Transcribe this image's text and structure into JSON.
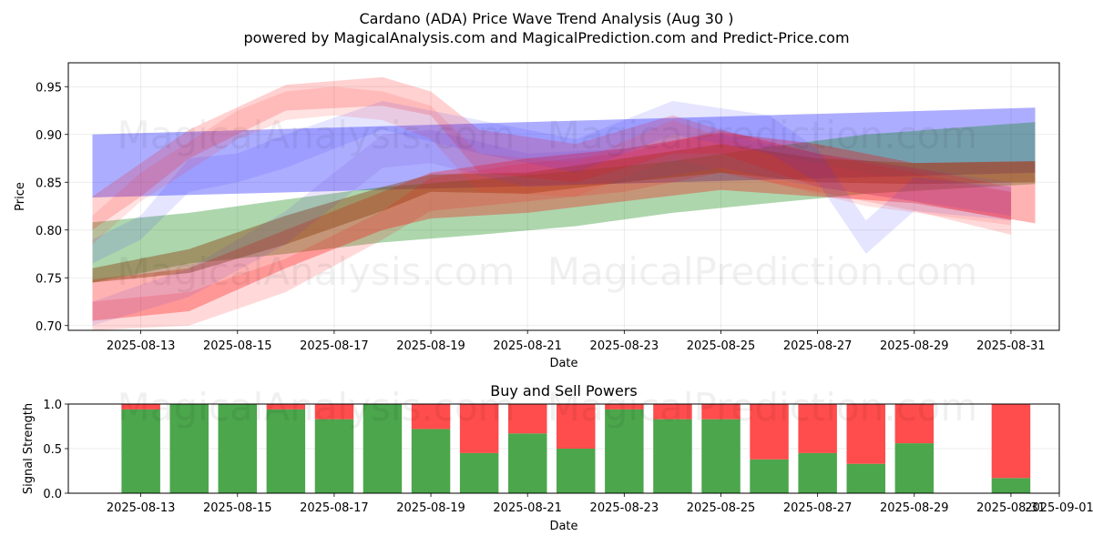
{
  "figure": {
    "title_line1": "Cardano (ADA) Price Wave Trend Analysis (Aug 30 )",
    "title_line2": "powered by MagicalAnalysis.com and MagicalPrediction.com and Predict-Price.com",
    "watermark_a": "MagicalAnalysis.com",
    "watermark_b": "MagicalPrediction.com"
  },
  "chart_data": [
    {
      "type": "area",
      "title": "",
      "xlabel": "Date",
      "ylabel": "Price",
      "xlim": [
        "2025-08-11T12:00",
        "2025-09-01T00:00"
      ],
      "ylim": [
        0.695,
        0.975
      ],
      "grid": true,
      "x_ticks": [
        "2025-08-13",
        "2025-08-15",
        "2025-08-17",
        "2025-08-19",
        "2025-08-21",
        "2025-08-23",
        "2025-08-25",
        "2025-08-27",
        "2025-08-29",
        "2025-08-31"
      ],
      "y_ticks": [
        0.7,
        0.75,
        0.8,
        0.85,
        0.9,
        0.95
      ],
      "bands": [
        {
          "color": "#0000ff",
          "alpha": 0.32,
          "x": [
            "2025-08-12",
            "2025-08-31T12:00"
          ],
          "upper": [
            0.9,
            0.928
          ],
          "lower": [
            0.834,
            0.86
          ]
        },
        {
          "color": "#008000",
          "alpha": 0.32,
          "x": [
            "2025-08-12",
            "2025-08-14",
            "2025-08-16",
            "2025-08-18",
            "2025-08-20",
            "2025-08-22",
            "2025-08-24",
            "2025-08-26",
            "2025-08-28",
            "2025-08-31T12:00"
          ],
          "upper": [
            0.808,
            0.818,
            0.832,
            0.845,
            0.853,
            0.862,
            0.872,
            0.887,
            0.9,
            0.913
          ],
          "lower": [
            0.745,
            0.765,
            0.775,
            0.787,
            0.795,
            0.804,
            0.818,
            0.828,
            0.838,
            0.848
          ]
        },
        {
          "color": "#ff0000",
          "alpha": 0.3,
          "x": [
            "2025-08-12",
            "2025-08-14",
            "2025-08-16",
            "2025-08-18",
            "2025-08-19",
            "2025-08-21",
            "2025-08-23",
            "2025-08-25",
            "2025-08-27",
            "2025-08-29",
            "2025-08-31T12:00"
          ],
          "upper": [
            0.748,
            0.76,
            0.8,
            0.84,
            0.86,
            0.875,
            0.885,
            0.902,
            0.89,
            0.87,
            0.872
          ],
          "lower": [
            0.705,
            0.715,
            0.76,
            0.8,
            0.812,
            0.818,
            0.83,
            0.842,
            0.835,
            0.828,
            0.807
          ]
        },
        {
          "color": "#8b4513",
          "alpha": 0.45,
          "x": [
            "2025-08-12",
            "2025-08-14",
            "2025-08-16",
            "2025-08-18",
            "2025-08-19",
            "2025-08-21",
            "2025-08-23",
            "2025-08-25",
            "2025-08-27",
            "2025-08-29",
            "2025-08-31T12:00"
          ],
          "upper": [
            0.76,
            0.78,
            0.815,
            0.845,
            0.858,
            0.86,
            0.875,
            0.89,
            0.875,
            0.87,
            0.872
          ],
          "lower": [
            0.745,
            0.755,
            0.785,
            0.82,
            0.84,
            0.838,
            0.85,
            0.86,
            0.85,
            0.848,
            0.85
          ]
        },
        {
          "color": "#ff0000",
          "alpha": 0.18,
          "x": [
            "2025-08-12",
            "2025-08-13",
            "2025-08-14",
            "2025-08-16",
            "2025-08-18",
            "2025-08-19",
            "2025-08-20",
            "2025-08-22",
            "2025-08-24",
            "2025-08-25",
            "2025-08-27",
            "2025-08-29",
            "2025-08-31"
          ],
          "upper": [
            0.835,
            0.87,
            0.905,
            0.952,
            0.96,
            0.945,
            0.905,
            0.89,
            0.92,
            0.905,
            0.88,
            0.865,
            0.845
          ],
          "lower": [
            0.8,
            0.835,
            0.875,
            0.925,
            0.93,
            0.92,
            0.86,
            0.85,
            0.88,
            0.88,
            0.845,
            0.83,
            0.81
          ]
        },
        {
          "color": "#ff0000",
          "alpha": 0.15,
          "x": [
            "2025-08-12",
            "2025-08-14",
            "2025-08-16",
            "2025-08-18",
            "2025-08-19",
            "2025-08-21",
            "2025-08-23",
            "2025-08-25",
            "2025-08-27",
            "2025-08-29",
            "2025-08-31"
          ],
          "upper": [
            0.725,
            0.735,
            0.77,
            0.82,
            0.855,
            0.87,
            0.88,
            0.905,
            0.88,
            0.86,
            0.84
          ],
          "lower": [
            0.695,
            0.7,
            0.735,
            0.79,
            0.82,
            0.83,
            0.84,
            0.86,
            0.84,
            0.82,
            0.795
          ]
        },
        {
          "color": "#3333ff",
          "alpha": 0.13,
          "x": [
            "2025-08-12",
            "2025-08-13",
            "2025-08-14",
            "2025-08-15",
            "2025-08-16",
            "2025-08-18",
            "2025-08-20",
            "2025-08-22",
            "2025-08-24",
            "2025-08-26",
            "2025-08-27",
            "2025-08-28",
            "2025-08-29",
            "2025-08-31"
          ],
          "upper": [
            0.79,
            0.815,
            0.875,
            0.88,
            0.9,
            0.935,
            0.915,
            0.895,
            0.935,
            0.92,
            0.885,
            0.81,
            0.855,
            0.845
          ],
          "lower": [
            0.765,
            0.79,
            0.84,
            0.85,
            0.865,
            0.905,
            0.88,
            0.86,
            0.9,
            0.88,
            0.85,
            0.775,
            0.82,
            0.81
          ]
        },
        {
          "color": "#ff3333",
          "alpha": 0.14,
          "x": [
            "2025-08-12",
            "2025-08-13",
            "2025-08-15",
            "2025-08-16",
            "2025-08-17",
            "2025-08-18",
            "2025-08-19",
            "2025-08-20",
            "2025-08-22",
            "2025-08-24",
            "2025-08-26",
            "2025-08-28",
            "2025-08-31"
          ],
          "upper": [
            0.815,
            0.86,
            0.925,
            0.945,
            0.95,
            0.945,
            0.93,
            0.88,
            0.87,
            0.915,
            0.88,
            0.86,
            0.84
          ],
          "lower": [
            0.785,
            0.83,
            0.895,
            0.915,
            0.92,
            0.915,
            0.895,
            0.84,
            0.835,
            0.875,
            0.85,
            0.825,
            0.805
          ]
        },
        {
          "color": "#6633cc",
          "alpha": 0.12,
          "x": [
            "2025-08-12",
            "2025-08-14",
            "2025-08-16",
            "2025-08-17",
            "2025-08-18",
            "2025-08-19",
            "2025-08-21",
            "2025-08-23",
            "2025-08-25",
            "2025-08-27",
            "2025-08-29",
            "2025-08-31"
          ],
          "upper": [
            0.725,
            0.76,
            0.82,
            0.86,
            0.9,
            0.905,
            0.88,
            0.885,
            0.9,
            0.88,
            0.865,
            0.85
          ],
          "lower": [
            0.7,
            0.73,
            0.785,
            0.825,
            0.865,
            0.87,
            0.845,
            0.85,
            0.865,
            0.845,
            0.83,
            0.815
          ]
        }
      ]
    },
    {
      "type": "bar",
      "title": "Buy and Sell Powers",
      "xlabel": "Date",
      "ylabel": "Signal Strength",
      "xlim": [
        "2025-08-11T12:00",
        "2025-09-01T00:00"
      ],
      "ylim": [
        0,
        1
      ],
      "grid": true,
      "x_ticks": [
        "2025-08-13",
        "2025-08-15",
        "2025-08-17",
        "2025-08-19",
        "2025-08-21",
        "2025-08-23",
        "2025-08-25",
        "2025-08-27",
        "2025-08-29",
        "2025-08-31",
        "2025-09-01"
      ],
      "y_ticks": [
        "0.0",
        "0.5",
        "1.0"
      ],
      "categories": [
        "2025-08-13",
        "2025-08-14",
        "2025-08-15",
        "2025-08-16",
        "2025-08-17",
        "2025-08-18",
        "2025-08-19",
        "2025-08-20",
        "2025-08-21",
        "2025-08-22",
        "2025-08-23",
        "2025-08-24",
        "2025-08-25",
        "2025-08-26",
        "2025-08-27",
        "2025-08-28",
        "2025-08-29",
        "2025-08-31"
      ],
      "series": [
        {
          "color": "#4ca64c",
          "values": [
            0.94,
            1.0,
            1.0,
            0.94,
            0.83,
            1.0,
            0.72,
            0.45,
            0.67,
            0.5,
            0.94,
            0.83,
            0.83,
            0.38,
            0.45,
            0.33,
            0.56,
            0.17
          ]
        },
        {
          "color": "#ff4c4c",
          "values": [
            0.06,
            0.0,
            0.0,
            0.06,
            0.17,
            0.0,
            0.28,
            0.55,
            0.33,
            0.5,
            0.06,
            0.17,
            0.17,
            0.62,
            0.55,
            0.67,
            0.44,
            0.83
          ]
        }
      ]
    }
  ]
}
